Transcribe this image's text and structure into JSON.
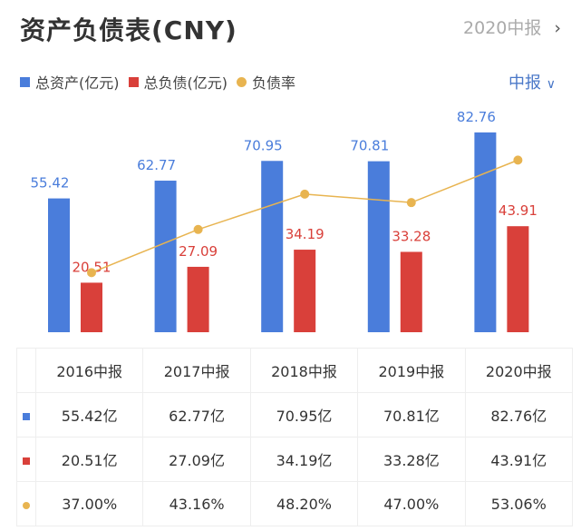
{
  "header": {
    "title": "资产负债表(CNY)",
    "period": "2020中报",
    "chevron_icon": "chevron-right-icon"
  },
  "selector": {
    "label": "中报",
    "icon": "chevron-down-icon"
  },
  "colors": {
    "assets": "#4a7ddb",
    "liabilities": "#d9403a",
    "ratio": "#e8b450"
  },
  "chart_data": {
    "type": "bar",
    "categories": [
      "2016中报",
      "2017中报",
      "2018中报",
      "2019中报",
      "2020中报"
    ],
    "series": [
      {
        "name": "总资产(亿元)",
        "type": "bar",
        "values": [
          55.42,
          62.77,
          70.95,
          70.81,
          82.76
        ],
        "labels": [
          "55.42",
          "62.77",
          "70.95",
          "70.81",
          "82.76"
        ]
      },
      {
        "name": "总负债(亿元)",
        "type": "bar",
        "values": [
          20.51,
          27.09,
          34.19,
          33.28,
          43.91
        ],
        "labels": [
          "20.51",
          "27.09",
          "34.19",
          "33.28",
          "43.91"
        ]
      },
      {
        "name": "负债率",
        "type": "line",
        "values": [
          37.0,
          43.16,
          48.2,
          47.0,
          53.06
        ]
      }
    ],
    "legend": "top-left",
    "grid": false
  },
  "table": {
    "headers": [
      "2016中报",
      "2017中报",
      "2018中报",
      "2019中报",
      "2020中报"
    ],
    "rows": [
      [
        "55.42亿",
        "62.77亿",
        "70.95亿",
        "70.81亿",
        "82.76亿"
      ],
      [
        "20.51亿",
        "27.09亿",
        "34.19亿",
        "33.28亿",
        "43.91亿"
      ],
      [
        "37.00%",
        "43.16%",
        "48.20%",
        "47.00%",
        "53.06%"
      ]
    ]
  }
}
